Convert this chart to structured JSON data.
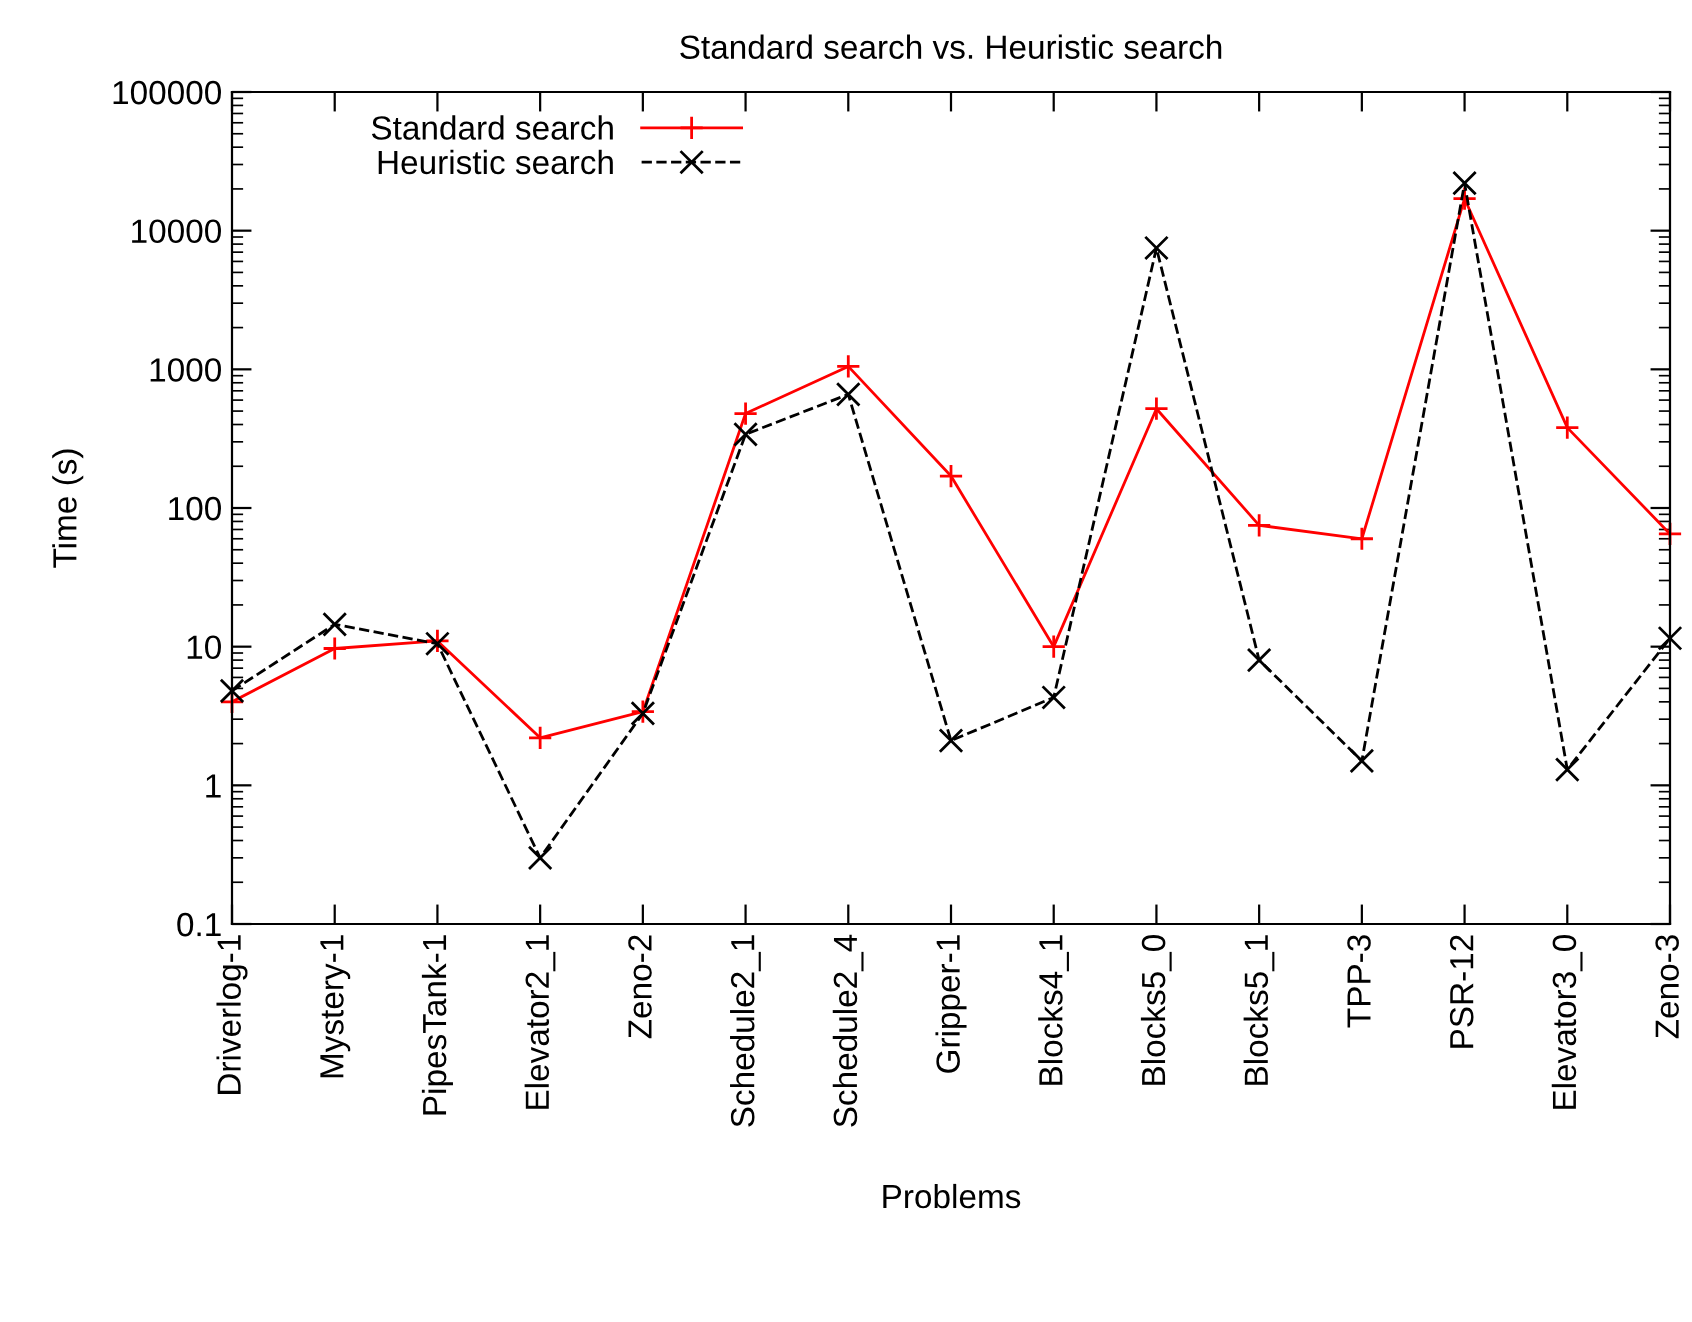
{
  "chart_data": {
    "type": "line",
    "title": "Standard search vs. Heuristic search",
    "xlabel": "Problems",
    "ylabel": "Time (s)",
    "categories": [
      "Driverlog-1",
      "Mystery-1",
      "PipesTank-1",
      "Elevator2_1",
      "Zeno-2",
      "Schedule2_1",
      "Schedule2_4",
      "Gripper-1",
      "Blocks4_1",
      "Blocks5_0",
      "Blocks5_1",
      "TPP-3",
      "PSR-12",
      "Elevator3_0",
      "Zeno-3"
    ],
    "series": [
      {
        "name": "Standard search",
        "color": "#ff0000",
        "marker": "cross",
        "line_style": "solid",
        "values": [
          4,
          9.7,
          11,
          2.2,
          3.4,
          480,
          1050,
          170,
          10,
          520,
          75,
          60,
          17000,
          380,
          65
        ]
      },
      {
        "name": "Heuristic search",
        "color": "#000000",
        "marker": "x",
        "line_style": "dashed",
        "values": [
          4.8,
          14.5,
          10.5,
          0.3,
          3.3,
          340,
          660,
          2.1,
          4.3,
          7500,
          8,
          1.5,
          22000,
          1.3,
          11.5
        ]
      }
    ],
    "log": "y",
    "ylim": [
      0.1,
      100000
    ],
    "yticks": [
      0.1,
      1,
      10,
      100,
      1000,
      10000,
      100000
    ],
    "grid": false,
    "legend": "top left"
  }
}
